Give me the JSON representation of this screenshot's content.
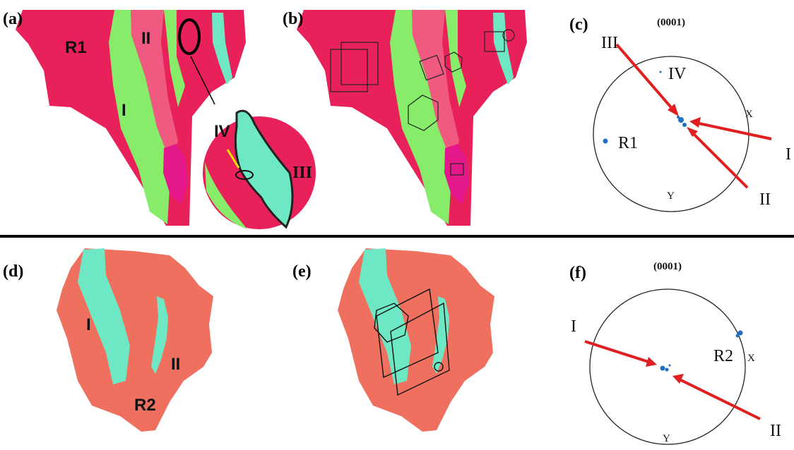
{
  "panels": [
    {
      "label": "(a)",
      "annotations": [
        "R1",
        "II",
        "I",
        "IV",
        "III"
      ]
    },
    {
      "label": "(b)"
    },
    {
      "label": "(c)",
      "pole": "(0001)",
      "annotations": [
        "III",
        "IV",
        "X",
        "R1",
        "I",
        "Y",
        "II"
      ]
    },
    {
      "label": "(d)",
      "annotations": [
        "I",
        "II",
        "R2"
      ]
    },
    {
      "label": "(e)"
    },
    {
      "label": "(f)",
      "pole": "(0001)",
      "annotations": [
        "I",
        "R2",
        "X",
        "Y",
        "II"
      ]
    }
  ]
}
